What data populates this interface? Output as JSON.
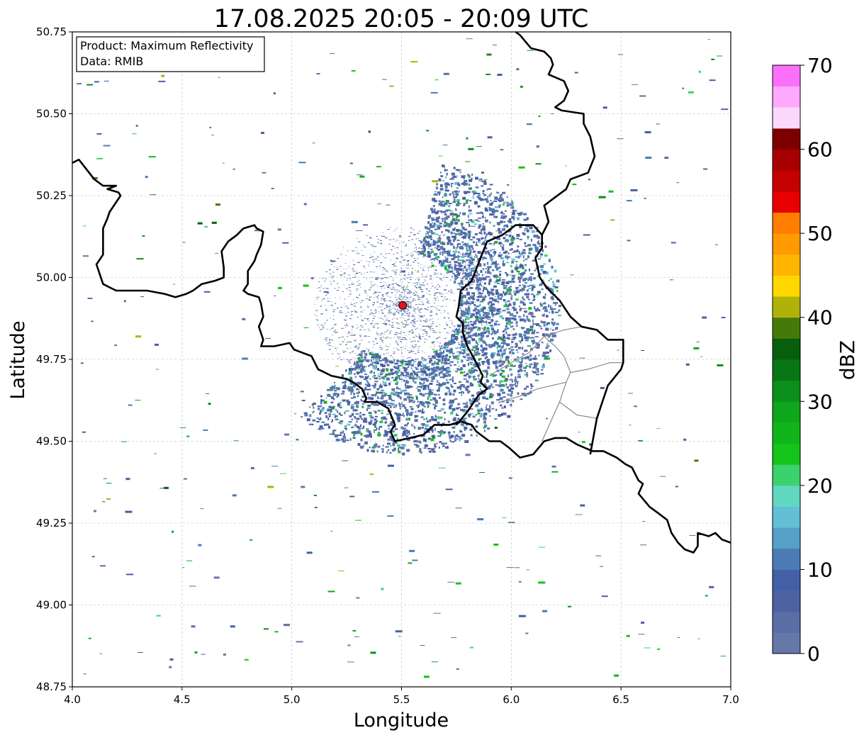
{
  "title": "17.08.2025 20:05 - 20:09 UTC",
  "info_box": {
    "line1": "Product: Maximum Reflectivity",
    "line2": "Data: RMIB"
  },
  "colorbar": {
    "label": "dBZ",
    "min": 0,
    "max": 70,
    "step": 2.5,
    "ticks": [
      "0",
      "10",
      "20",
      "30",
      "40",
      "50",
      "60",
      "70"
    ],
    "tick_values": [
      0,
      10,
      20,
      30,
      40,
      50,
      60,
      70
    ],
    "colors": [
      "#6678a8",
      "#5a6da5",
      "#4d62a2",
      "#4360a6",
      "#4a7bb5",
      "#56a0c8",
      "#62bfd6",
      "#61d6c1",
      "#3cd26b",
      "#14c41a",
      "#10b51b",
      "#0ea61b",
      "#0c8f1a",
      "#087615",
      "#075e0d",
      "#457a0a",
      "#b0b20a",
      "#ffd700",
      "#ffb400",
      "#ff9a00",
      "#ff7d00",
      "#e80000",
      "#c40000",
      "#a60000",
      "#7d0000",
      "#fdd8fd",
      "#fdaafd",
      "#fb70fb",
      "#ee32ee"
    ]
  },
  "chart_data": {
    "type": "map",
    "xlabel": "Longitude",
    "ylabel": "Latitude",
    "xlim": [
      4.0,
      7.0
    ],
    "ylim": [
      48.75,
      50.75
    ],
    "x_ticks": [
      "4.0",
      "4.5",
      "5.0",
      "5.5",
      "6.0",
      "6.5",
      "7.0"
    ],
    "x_tick_values": [
      4.0,
      4.5,
      5.0,
      5.5,
      6.0,
      6.5,
      7.0
    ],
    "y_ticks": [
      "48.75",
      "49.00",
      "49.25",
      "49.50",
      "49.75",
      "50.00",
      "50.25",
      "50.50",
      "50.75"
    ],
    "y_tick_values": [
      48.75,
      49.0,
      49.25,
      49.5,
      49.75,
      50.0,
      50.25,
      50.5,
      50.75
    ],
    "grid": true,
    "radar_site": {
      "lon": 5.505,
      "lat": 49.915
    },
    "borders": [
      [
        [
          4.0,
          50.35
        ],
        [
          4.03,
          50.36
        ],
        [
          4.1,
          50.3
        ],
        [
          4.14,
          50.28
        ],
        [
          4.2,
          50.28
        ],
        [
          4.16,
          50.27
        ],
        [
          4.21,
          50.26
        ],
        [
          4.22,
          50.25
        ],
        [
          4.17,
          50.2
        ],
        [
          4.16,
          50.18
        ],
        [
          4.14,
          50.15
        ],
        [
          4.14,
          50.07
        ],
        [
          4.11,
          50.04
        ],
        [
          4.14,
          49.98
        ],
        [
          4.17,
          49.97
        ],
        [
          4.2,
          49.96
        ],
        [
          4.26,
          49.96
        ],
        [
          4.34,
          49.96
        ],
        [
          4.42,
          49.95
        ],
        [
          4.47,
          49.94
        ],
        [
          4.52,
          49.95
        ],
        [
          4.55,
          49.96
        ],
        [
          4.59,
          49.98
        ],
        [
          4.65,
          49.99
        ],
        [
          4.69,
          50.0
        ],
        [
          4.69,
          50.03
        ],
        [
          4.68,
          50.08
        ],
        [
          4.71,
          50.11
        ],
        [
          4.75,
          50.13
        ],
        [
          4.78,
          50.15
        ],
        [
          4.83,
          50.16
        ],
        [
          4.84,
          50.15
        ],
        [
          4.87,
          50.14
        ],
        [
          4.86,
          50.1
        ],
        [
          4.84,
          50.07
        ],
        [
          4.83,
          50.05
        ],
        [
          4.8,
          50.02
        ],
        [
          4.8,
          49.98
        ],
        [
          4.78,
          49.96
        ],
        [
          4.8,
          49.95
        ],
        [
          4.85,
          49.94
        ],
        [
          4.86,
          49.92
        ],
        [
          4.87,
          49.88
        ],
        [
          4.85,
          49.85
        ],
        [
          4.87,
          49.81
        ],
        [
          4.86,
          49.79
        ],
        [
          4.92,
          49.79
        ],
        [
          4.99,
          49.8
        ],
        [
          5.01,
          49.78
        ],
        [
          5.05,
          49.77
        ],
        [
          5.09,
          49.76
        ],
        [
          5.12,
          49.72
        ],
        [
          5.18,
          49.7
        ],
        [
          5.25,
          49.69
        ],
        [
          5.28,
          49.68
        ],
        [
          5.32,
          49.66
        ],
        [
          5.34,
          49.63
        ],
        [
          5.33,
          49.62
        ],
        [
          5.39,
          49.62
        ],
        [
          5.44,
          49.6
        ],
        [
          5.47,
          49.55
        ],
        [
          5.45,
          49.53
        ],
        [
          5.47,
          49.5
        ],
        [
          5.54,
          49.51
        ],
        [
          5.6,
          49.52
        ],
        [
          5.65,
          49.55
        ],
        [
          5.72,
          49.55
        ],
        [
          5.77,
          49.56
        ],
        [
          5.82,
          49.55
        ],
        [
          5.84,
          49.53
        ],
        [
          5.9,
          49.5
        ],
        [
          5.95,
          49.5
        ],
        [
          5.99,
          49.48
        ],
        [
          6.04,
          49.45
        ],
        [
          6.1,
          49.46
        ],
        [
          6.15,
          49.5
        ],
        [
          6.2,
          49.51
        ],
        [
          6.25,
          49.51
        ],
        [
          6.3,
          49.49
        ],
        [
          6.37,
          49.47
        ],
        [
          6.42,
          49.47
        ],
        [
          6.48,
          49.45
        ],
        [
          6.52,
          49.43
        ],
        [
          6.55,
          49.42
        ],
        [
          6.58,
          49.38
        ],
        [
          6.6,
          49.37
        ],
        [
          6.58,
          49.34
        ],
        [
          6.63,
          49.3
        ],
        [
          6.67,
          49.28
        ],
        [
          6.71,
          49.26
        ],
        [
          6.73,
          49.22
        ],
        [
          6.76,
          49.19
        ],
        [
          6.79,
          49.17
        ],
        [
          6.83,
          49.16
        ],
        [
          6.85,
          49.18
        ],
        [
          6.85,
          49.22
        ],
        [
          6.9,
          49.21
        ],
        [
          6.93,
          49.22
        ],
        [
          6.96,
          49.2
        ],
        [
          7.0,
          49.19
        ]
      ],
      [
        [
          5.75,
          49.55
        ],
        [
          5.8,
          49.59
        ],
        [
          5.85,
          49.64
        ],
        [
          5.89,
          49.66
        ],
        [
          5.86,
          49.68
        ],
        [
          5.87,
          49.7
        ],
        [
          5.84,
          49.74
        ],
        [
          5.8,
          49.79
        ],
        [
          5.78,
          49.83
        ],
        [
          5.78,
          49.86
        ],
        [
          5.75,
          49.88
        ],
        [
          5.76,
          49.91
        ],
        [
          5.77,
          49.96
        ],
        [
          5.82,
          49.99
        ],
        [
          5.86,
          50.06
        ],
        [
          5.89,
          50.11
        ],
        [
          5.96,
          50.13
        ],
        [
          6.02,
          50.16
        ],
        [
          6.1,
          50.16
        ],
        [
          6.14,
          50.13
        ],
        [
          6.14,
          50.09
        ],
        [
          6.11,
          50.06
        ],
        [
          6.13,
          50.0
        ],
        [
          6.16,
          49.97
        ],
        [
          6.22,
          49.93
        ],
        [
          6.27,
          49.88
        ],
        [
          6.32,
          49.85
        ],
        [
          6.39,
          49.84
        ],
        [
          6.44,
          49.81
        ],
        [
          6.51,
          49.81
        ],
        [
          6.51,
          49.78
        ],
        [
          6.51,
          49.74
        ],
        [
          6.5,
          49.72
        ],
        [
          6.44,
          49.67
        ],
        [
          6.42,
          49.63
        ],
        [
          6.39,
          49.57
        ],
        [
          6.36,
          49.46
        ]
      ],
      [
        [
          6.14,
          50.13
        ],
        [
          6.17,
          50.17
        ],
        [
          6.15,
          50.22
        ],
        [
          6.19,
          50.24
        ],
        [
          6.25,
          50.27
        ],
        [
          6.27,
          50.3
        ],
        [
          6.35,
          50.32
        ],
        [
          6.38,
          50.37
        ],
        [
          6.36,
          50.43
        ],
        [
          6.33,
          50.47
        ],
        [
          6.33,
          50.5
        ],
        [
          6.23,
          50.51
        ],
        [
          6.2,
          50.52
        ],
        [
          6.24,
          50.54
        ],
        [
          6.26,
          50.57
        ],
        [
          6.24,
          50.6
        ],
        [
          6.17,
          50.62
        ],
        [
          6.19,
          50.65
        ],
        [
          6.18,
          50.67
        ],
        [
          6.15,
          50.69
        ],
        [
          6.09,
          50.7
        ],
        [
          6.04,
          50.74
        ],
        [
          6.02,
          50.75
        ]
      ]
    ],
    "internal_borders": [
      [
        [
          6.15,
          49.82
        ],
        [
          6.2,
          49.79
        ],
        [
          6.24,
          49.76
        ],
        [
          6.27,
          49.71
        ],
        [
          6.25,
          49.68
        ],
        [
          6.22,
          49.62
        ],
        [
          6.18,
          49.56
        ],
        [
          6.14,
          49.5
        ]
      ],
      [
        [
          5.9,
          49.7
        ],
        [
          6.0,
          49.74
        ],
        [
          6.08,
          49.77
        ],
        [
          6.15,
          49.82
        ],
        [
          6.24,
          49.84
        ],
        [
          6.32,
          49.85
        ]
      ],
      [
        [
          6.27,
          49.71
        ],
        [
          6.35,
          49.72
        ],
        [
          6.45,
          49.74
        ],
        [
          6.51,
          49.74
        ]
      ],
      [
        [
          6.22,
          49.62
        ],
        [
          6.3,
          49.58
        ],
        [
          6.39,
          49.57
        ]
      ],
      [
        [
          5.95,
          49.62
        ],
        [
          6.05,
          49.64
        ],
        [
          6.12,
          49.66
        ],
        [
          6.25,
          49.68
        ]
      ]
    ]
  }
}
